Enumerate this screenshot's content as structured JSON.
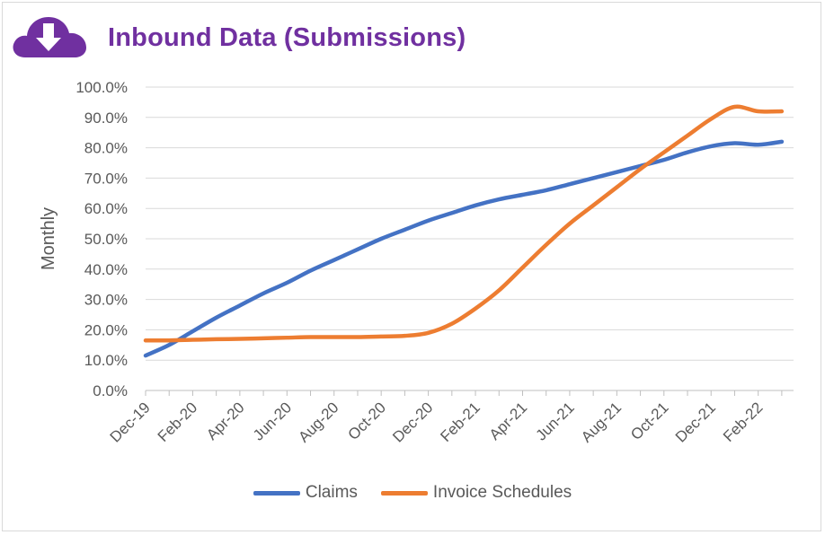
{
  "header": {
    "title": "Inbound Data (Submissions)",
    "icon": "cloud-download-icon",
    "icon_color": "#7030a0"
  },
  "chart_data": {
    "type": "line",
    "title": "Inbound Data (Submissions)",
    "ylabel": "Monthly",
    "xlabel": "",
    "ylim": [
      0,
      100
    ],
    "y_ticks": [
      "100.0%",
      "90.0%",
      "80.0%",
      "70.0%",
      "60.0%",
      "50.0%",
      "40.0%",
      "30.0%",
      "20.0%",
      "10.0%",
      "0.0%"
    ],
    "y_tick_values": [
      100,
      90,
      80,
      70,
      60,
      50,
      40,
      30,
      20,
      10,
      0
    ],
    "x_tick_labels": [
      "Dec-19",
      "Feb-20",
      "Apr-20",
      "Jun-20",
      "Aug-20",
      "Oct-20",
      "Dec-20",
      "Feb-21",
      "Apr-21",
      "Jun-21",
      "Aug-21",
      "Oct-21",
      "Dec-21",
      "Feb-22"
    ],
    "categories": [
      "Dec-19",
      "Jan-20",
      "Feb-20",
      "Mar-20",
      "Apr-20",
      "May-20",
      "Jun-20",
      "Jul-20",
      "Aug-20",
      "Sep-20",
      "Oct-20",
      "Nov-20",
      "Dec-20",
      "Jan-21",
      "Feb-21",
      "Mar-21",
      "Apr-21",
      "May-21",
      "Jun-21",
      "Jul-21",
      "Aug-21",
      "Sep-21",
      "Oct-21",
      "Nov-21",
      "Dec-21",
      "Jan-22",
      "Feb-22",
      "Mar-22"
    ],
    "series": [
      {
        "name": "Claims",
        "color": "#4472c4",
        "values": [
          11.5,
          15.0,
          19.5,
          24.0,
          28.0,
          32.0,
          35.5,
          39.5,
          43.0,
          46.5,
          50.0,
          53.0,
          56.0,
          58.5,
          61.0,
          63.0,
          64.5,
          66.0,
          68.0,
          70.0,
          72.0,
          74.0,
          76.0,
          78.5,
          80.5,
          81.5,
          81.0,
          82.0
        ]
      },
      {
        "name": "Invoice Schedules",
        "color": "#ed7d31",
        "values": [
          16.5,
          16.5,
          16.7,
          16.9,
          17.0,
          17.2,
          17.4,
          17.6,
          17.6,
          17.6,
          17.8,
          18.0,
          19.0,
          22.0,
          27.0,
          33.0,
          40.5,
          48.0,
          55.0,
          61.0,
          67.0,
          73.0,
          78.5,
          84.0,
          89.5,
          93.5,
          92.0,
          92.0
        ]
      }
    ],
    "legend_position": "bottom",
    "grid": true
  },
  "legend": {
    "items": [
      {
        "label": "Claims",
        "color": "#4472c4"
      },
      {
        "label": "Invoice Schedules",
        "color": "#ed7d31"
      }
    ]
  }
}
